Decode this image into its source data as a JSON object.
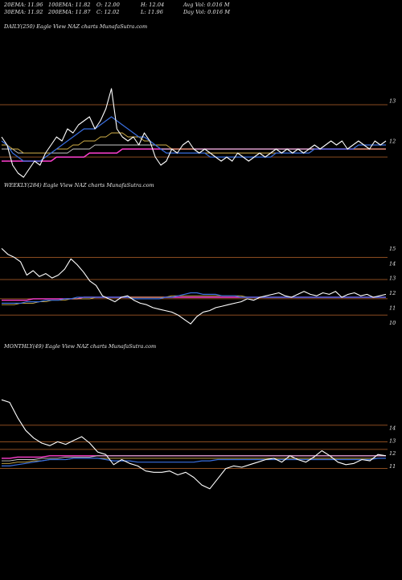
{
  "header": {
    "row1": [
      {
        "label": "20EMA: 11.96"
      },
      {
        "label": "100EMA: 11.82"
      },
      {
        "label": "O: 12.00"
      },
      {
        "label": "H: 12.04"
      },
      {
        "label": "Avg Vol: 0.016  M"
      }
    ],
    "row2": [
      {
        "label": "30EMA: 11.92"
      },
      {
        "label": "200EMA: 11.87"
      },
      {
        "label": "C: 12.02"
      },
      {
        "label": "L: 11.96"
      },
      {
        "label": "Day Vol: 0.016  M"
      }
    ]
  },
  "colors": {
    "background": "#000000",
    "price": "#ffffff",
    "ema_short": "#3a6fe0",
    "ema_mid": "#d4b24a",
    "ema_long": "#c8c8c8",
    "ema_200": "#ff3fd0",
    "level_line": "#b8652b"
  },
  "chart_data": [
    {
      "type": "line",
      "title": "DAILY(250) Eagle  View  NAZ charts MunafaSutra.com",
      "yticks": [
        13,
        12
      ],
      "ylim": [
        11.0,
        13.6
      ],
      "levels": [
        12.9,
        11.6
      ],
      "series": [
        {
          "key": "price",
          "values": [
            12.1,
            11.9,
            11.4,
            11.2,
            11.1,
            11.3,
            11.5,
            11.4,
            11.7,
            11.9,
            12.1,
            12.0,
            12.3,
            12.2,
            12.4,
            12.5,
            12.6,
            12.3,
            12.5,
            12.8,
            13.3,
            12.3,
            12.1,
            12.0,
            12.1,
            11.9,
            12.2,
            12.0,
            11.6,
            11.4,
            11.5,
            11.8,
            11.7,
            11.9,
            12.0,
            11.8,
            11.7,
            11.8,
            11.7,
            11.6,
            11.5,
            11.6,
            11.5,
            11.7,
            11.6,
            11.5,
            11.6,
            11.7,
            11.6,
            11.7,
            11.8,
            11.7,
            11.8,
            11.7,
            11.8,
            11.7,
            11.8,
            11.9,
            11.8,
            11.9,
            12.0,
            11.9,
            12.0,
            11.8,
            11.9,
            12.0,
            11.9,
            11.8,
            12.0,
            11.9,
            12.0
          ]
        },
        {
          "key": "ema_short",
          "values": [
            12.0,
            11.9,
            11.7,
            11.6,
            11.5,
            11.5,
            11.5,
            11.5,
            11.6,
            11.7,
            11.8,
            11.9,
            12.0,
            12.1,
            12.2,
            12.3,
            12.3,
            12.3,
            12.4,
            12.5,
            12.6,
            12.5,
            12.4,
            12.3,
            12.2,
            12.1,
            12.1,
            12.0,
            11.9,
            11.8,
            11.7,
            11.7,
            11.7,
            11.7,
            11.7,
            11.7,
            11.7,
            11.7,
            11.6,
            11.6,
            11.6,
            11.6,
            11.6,
            11.6,
            11.6,
            11.6,
            11.6,
            11.6,
            11.6,
            11.6,
            11.7,
            11.7,
            11.7,
            11.7,
            11.7,
            11.7,
            11.7,
            11.8,
            11.8,
            11.8,
            11.8,
            11.8,
            11.8,
            11.8,
            11.8,
            11.9,
            11.9,
            11.9,
            11.9,
            11.9,
            11.9
          ]
        },
        {
          "key": "ema_mid",
          "values": [
            11.9,
            11.9,
            11.8,
            11.8,
            11.7,
            11.7,
            11.7,
            11.7,
            11.7,
            11.7,
            11.8,
            11.8,
            11.8,
            11.9,
            11.9,
            12.0,
            12.0,
            12.0,
            12.1,
            12.1,
            12.2,
            12.2,
            12.2,
            12.1,
            12.1,
            12.1,
            12.0,
            12.0,
            11.9,
            11.9,
            11.9,
            11.8,
            11.8,
            11.8,
            11.8,
            11.8,
            11.7,
            11.7,
            11.7,
            11.7,
            11.7,
            11.7,
            11.7,
            11.7,
            11.7,
            11.7,
            11.7,
            11.7,
            11.7,
            11.7,
            11.7,
            11.7,
            11.7,
            11.7,
            11.7,
            11.7,
            11.7,
            11.8,
            11.8,
            11.8,
            11.8,
            11.8,
            11.8,
            11.8,
            11.8,
            11.8,
            11.8,
            11.8,
            11.8,
            11.8,
            11.8
          ]
        },
        {
          "key": "ema_long",
          "values": [
            11.8,
            11.8,
            11.8,
            11.7,
            11.7,
            11.7,
            11.7,
            11.7,
            11.7,
            11.7,
            11.7,
            11.7,
            11.7,
            11.8,
            11.8,
            11.8,
            11.8,
            11.9,
            11.9,
            11.9,
            11.9,
            11.9,
            11.9,
            11.9,
            11.9,
            11.9,
            11.9,
            11.9,
            11.9,
            11.8,
            11.8,
            11.8,
            11.8,
            11.8,
            11.8,
            11.8,
            11.8,
            11.8,
            11.8,
            11.8,
            11.8,
            11.8,
            11.8,
            11.8,
            11.8,
            11.8,
            11.8,
            11.8,
            11.8,
            11.8,
            11.8,
            11.8,
            11.8,
            11.8,
            11.8,
            11.8,
            11.8,
            11.8,
            11.8,
            11.8,
            11.8,
            11.8,
            11.8,
            11.8,
            11.8,
            11.8,
            11.8,
            11.8,
            11.8,
            11.8,
            11.8
          ]
        },
        {
          "key": "ema_200",
          "values": [
            11.5,
            11.5,
            11.5,
            11.5,
            11.5,
            11.5,
            11.5,
            11.5,
            11.5,
            11.5,
            11.6,
            11.6,
            11.6,
            11.6,
            11.6,
            11.6,
            11.7,
            11.7,
            11.7,
            11.7,
            11.7,
            11.7,
            11.8,
            11.8,
            11.8,
            11.8,
            11.8,
            11.8,
            11.8,
            11.8,
            11.8,
            11.8,
            11.8,
            11.8,
            11.8,
            11.8,
            11.8,
            11.8,
            11.8,
            11.8,
            11.8,
            11.8,
            11.8,
            11.8,
            11.8,
            11.8,
            11.8,
            11.8,
            11.8,
            11.8,
            11.8,
            11.8,
            11.8,
            11.8,
            11.8,
            11.8,
            11.8,
            11.8,
            11.8,
            11.8,
            11.8,
            11.8,
            11.8,
            11.8,
            11.8,
            11.8,
            11.8,
            11.8,
            11.8,
            11.8,
            11.8
          ]
        }
      ]
    },
    {
      "type": "line",
      "title": "WEEKLY(284) Eagle  View  NAZ charts MunafaSutra.com",
      "yticks": [
        15,
        14,
        13,
        12,
        11,
        10
      ],
      "ylim": [
        9.2,
        16.0
      ],
      "levels": [
        14.4,
        12.9,
        11.6,
        10.5
      ],
      "series": [
        {
          "key": "price",
          "values": [
            15.0,
            14.6,
            14.4,
            14.1,
            13.2,
            13.5,
            13.1,
            13.3,
            13.0,
            13.2,
            13.6,
            14.3,
            13.9,
            13.4,
            12.8,
            12.5,
            11.8,
            11.6,
            11.4,
            11.7,
            11.8,
            11.5,
            11.3,
            11.2,
            11.0,
            10.9,
            10.8,
            10.7,
            10.5,
            10.2,
            9.9,
            10.4,
            10.7,
            10.8,
            11.0,
            11.1,
            11.2,
            11.3,
            11.4,
            11.6,
            11.5,
            11.7,
            11.8,
            11.9,
            12.0,
            11.8,
            11.7,
            11.9,
            12.1,
            11.9,
            11.8,
            12.0,
            11.9,
            12.1,
            11.7,
            11.9,
            12.0,
            11.8,
            11.9,
            11.7,
            11.8,
            11.9
          ]
        },
        {
          "key": "ema_short",
          "values": [
            11.3,
            11.3,
            11.3,
            11.3,
            11.4,
            11.4,
            11.4,
            11.5,
            11.5,
            11.5,
            11.6,
            11.6,
            11.7,
            11.7,
            11.7,
            11.7,
            11.7,
            11.7,
            11.7,
            11.7,
            11.7,
            11.6,
            11.6,
            11.6,
            11.6,
            11.6,
            11.7,
            11.7,
            11.8,
            11.9,
            12.0,
            12.0,
            11.9,
            11.9,
            11.9,
            11.8,
            11.8,
            11.8,
            11.7,
            11.7,
            11.7,
            11.7,
            11.7,
            11.7,
            11.7,
            11.7,
            11.7,
            11.7,
            11.7,
            11.7,
            11.7,
            11.7,
            11.7,
            11.7,
            11.7,
            11.7,
            11.7,
            11.7,
            11.7,
            11.7,
            11.7,
            11.7
          ]
        },
        {
          "key": "ema_mid",
          "values": [
            11.2,
            11.2,
            11.2,
            11.3,
            11.3,
            11.3,
            11.4,
            11.4,
            11.5,
            11.5,
            11.5,
            11.6,
            11.6,
            11.6,
            11.6,
            11.7,
            11.7,
            11.7,
            11.7,
            11.7,
            11.7,
            11.7,
            11.7,
            11.7,
            11.7,
            11.7,
            11.7,
            11.8,
            11.8,
            11.8,
            11.8,
            11.8,
            11.8,
            11.8,
            11.8,
            11.8,
            11.8,
            11.8,
            11.8,
            11.7,
            11.7,
            11.7,
            11.7,
            11.7,
            11.7,
            11.7,
            11.7,
            11.7,
            11.7,
            11.7,
            11.7,
            11.7,
            11.7,
            11.7,
            11.7,
            11.7,
            11.7,
            11.7,
            11.7,
            11.7,
            11.7,
            11.7
          ]
        },
        {
          "key": "ema_200",
          "values": [
            11.5,
            11.5,
            11.5,
            11.5,
            11.5,
            11.6,
            11.6,
            11.6,
            11.6,
            11.6,
            11.6,
            11.6,
            11.6,
            11.7,
            11.7,
            11.7,
            11.7,
            11.7,
            11.7,
            11.7,
            11.7,
            11.7,
            11.7,
            11.7,
            11.7,
            11.7,
            11.7,
            11.7,
            11.7,
            11.7,
            11.7,
            11.7,
            11.7,
            11.7,
            11.7,
            11.7,
            11.7,
            11.7,
            11.7,
            11.7,
            11.7,
            11.7,
            11.7,
            11.7,
            11.7,
            11.7,
            11.7,
            11.7,
            11.7,
            11.7,
            11.7,
            11.7,
            11.7,
            11.7,
            11.7,
            11.7,
            11.7,
            11.7,
            11.7,
            11.7,
            11.7,
            11.7
          ]
        }
      ]
    },
    {
      "type": "line",
      "title": "MONTHLY(49) Eagle  View  NAZ charts MunafaSutra.com",
      "yticks": [
        14,
        13,
        12,
        11
      ],
      "ylim": [
        9.0,
        16.6
      ],
      "levels": [
        14.2,
        12.9,
        12.3,
        10.8
      ],
      "series": [
        {
          "key": "price",
          "values": [
            16.2,
            16.0,
            14.8,
            13.8,
            13.2,
            12.8,
            12.6,
            12.9,
            12.7,
            13.0,
            13.3,
            12.8,
            12.1,
            11.9,
            11.1,
            11.5,
            11.2,
            11.0,
            10.6,
            10.5,
            10.5,
            10.6,
            10.3,
            10.5,
            10.1,
            9.5,
            9.2,
            10.0,
            10.8,
            11.0,
            10.9,
            11.1,
            11.3,
            11.5,
            11.6,
            11.3,
            11.8,
            11.5,
            11.3,
            11.7,
            12.2,
            11.8,
            11.3,
            11.1,
            11.2,
            11.5,
            11.4,
            11.9,
            11.8
          ]
        },
        {
          "key": "ema_short",
          "values": [
            11.0,
            11.0,
            11.1,
            11.2,
            11.3,
            11.4,
            11.5,
            11.5,
            11.5,
            11.6,
            11.6,
            11.6,
            11.6,
            11.5,
            11.4,
            11.4,
            11.4,
            11.3,
            11.3,
            11.3,
            11.3,
            11.3,
            11.3,
            11.3,
            11.3,
            11.4,
            11.4,
            11.5,
            11.5,
            11.5,
            11.5,
            11.5,
            11.5,
            11.5,
            11.5,
            11.5,
            11.5,
            11.5,
            11.5,
            11.5,
            11.5,
            11.5,
            11.5,
            11.5,
            11.5,
            11.5,
            11.5,
            11.6,
            11.6
          ]
        },
        {
          "key": "ema_mid",
          "values": [
            11.2,
            11.2,
            11.3,
            11.3,
            11.4,
            11.4,
            11.5,
            11.5,
            11.5,
            11.6,
            11.6,
            11.6,
            11.6,
            11.6,
            11.6,
            11.6,
            11.6,
            11.6,
            11.6,
            11.6,
            11.6,
            11.6,
            11.6,
            11.6,
            11.6,
            11.6,
            11.6,
            11.6,
            11.6,
            11.6,
            11.6,
            11.6,
            11.6,
            11.6,
            11.6,
            11.6,
            11.6,
            11.6,
            11.6,
            11.6,
            11.6,
            11.6,
            11.6,
            11.6,
            11.6,
            11.6,
            11.6,
            11.6,
            11.6
          ]
        },
        {
          "key": "ema_long",
          "values": [
            11.4,
            11.4,
            11.5,
            11.5,
            11.5,
            11.6,
            11.6,
            11.6,
            11.7,
            11.7,
            11.7,
            11.7,
            11.8,
            11.8,
            11.8,
            11.8,
            11.8,
            11.8,
            11.8,
            11.8,
            11.8,
            11.8,
            11.8,
            11.8,
            11.8,
            11.8,
            11.8,
            11.8,
            11.8,
            11.8,
            11.8,
            11.8,
            11.8,
            11.8,
            11.8,
            11.8,
            11.8,
            11.8,
            11.8,
            11.8,
            11.8,
            11.8,
            11.8,
            11.8,
            11.8,
            11.8,
            11.8,
            11.8,
            11.8
          ]
        },
        {
          "key": "ema_200",
          "values": [
            11.6,
            11.6,
            11.7,
            11.7,
            11.7,
            11.7,
            11.8,
            11.8,
            11.8,
            11.8,
            11.8,
            11.8,
            11.8,
            11.8,
            11.8,
            11.8,
            11.8,
            11.8,
            11.8,
            11.8,
            11.8,
            11.8,
            11.8,
            11.8,
            11.8,
            11.8,
            11.8,
            11.8,
            11.8,
            11.8,
            11.8,
            11.8,
            11.8,
            11.8,
            11.8,
            11.8,
            11.8,
            11.8,
            11.8,
            11.8,
            11.8,
            11.8,
            11.8,
            11.8,
            11.8,
            11.8,
            11.8,
            11.8,
            11.8
          ]
        }
      ]
    }
  ]
}
